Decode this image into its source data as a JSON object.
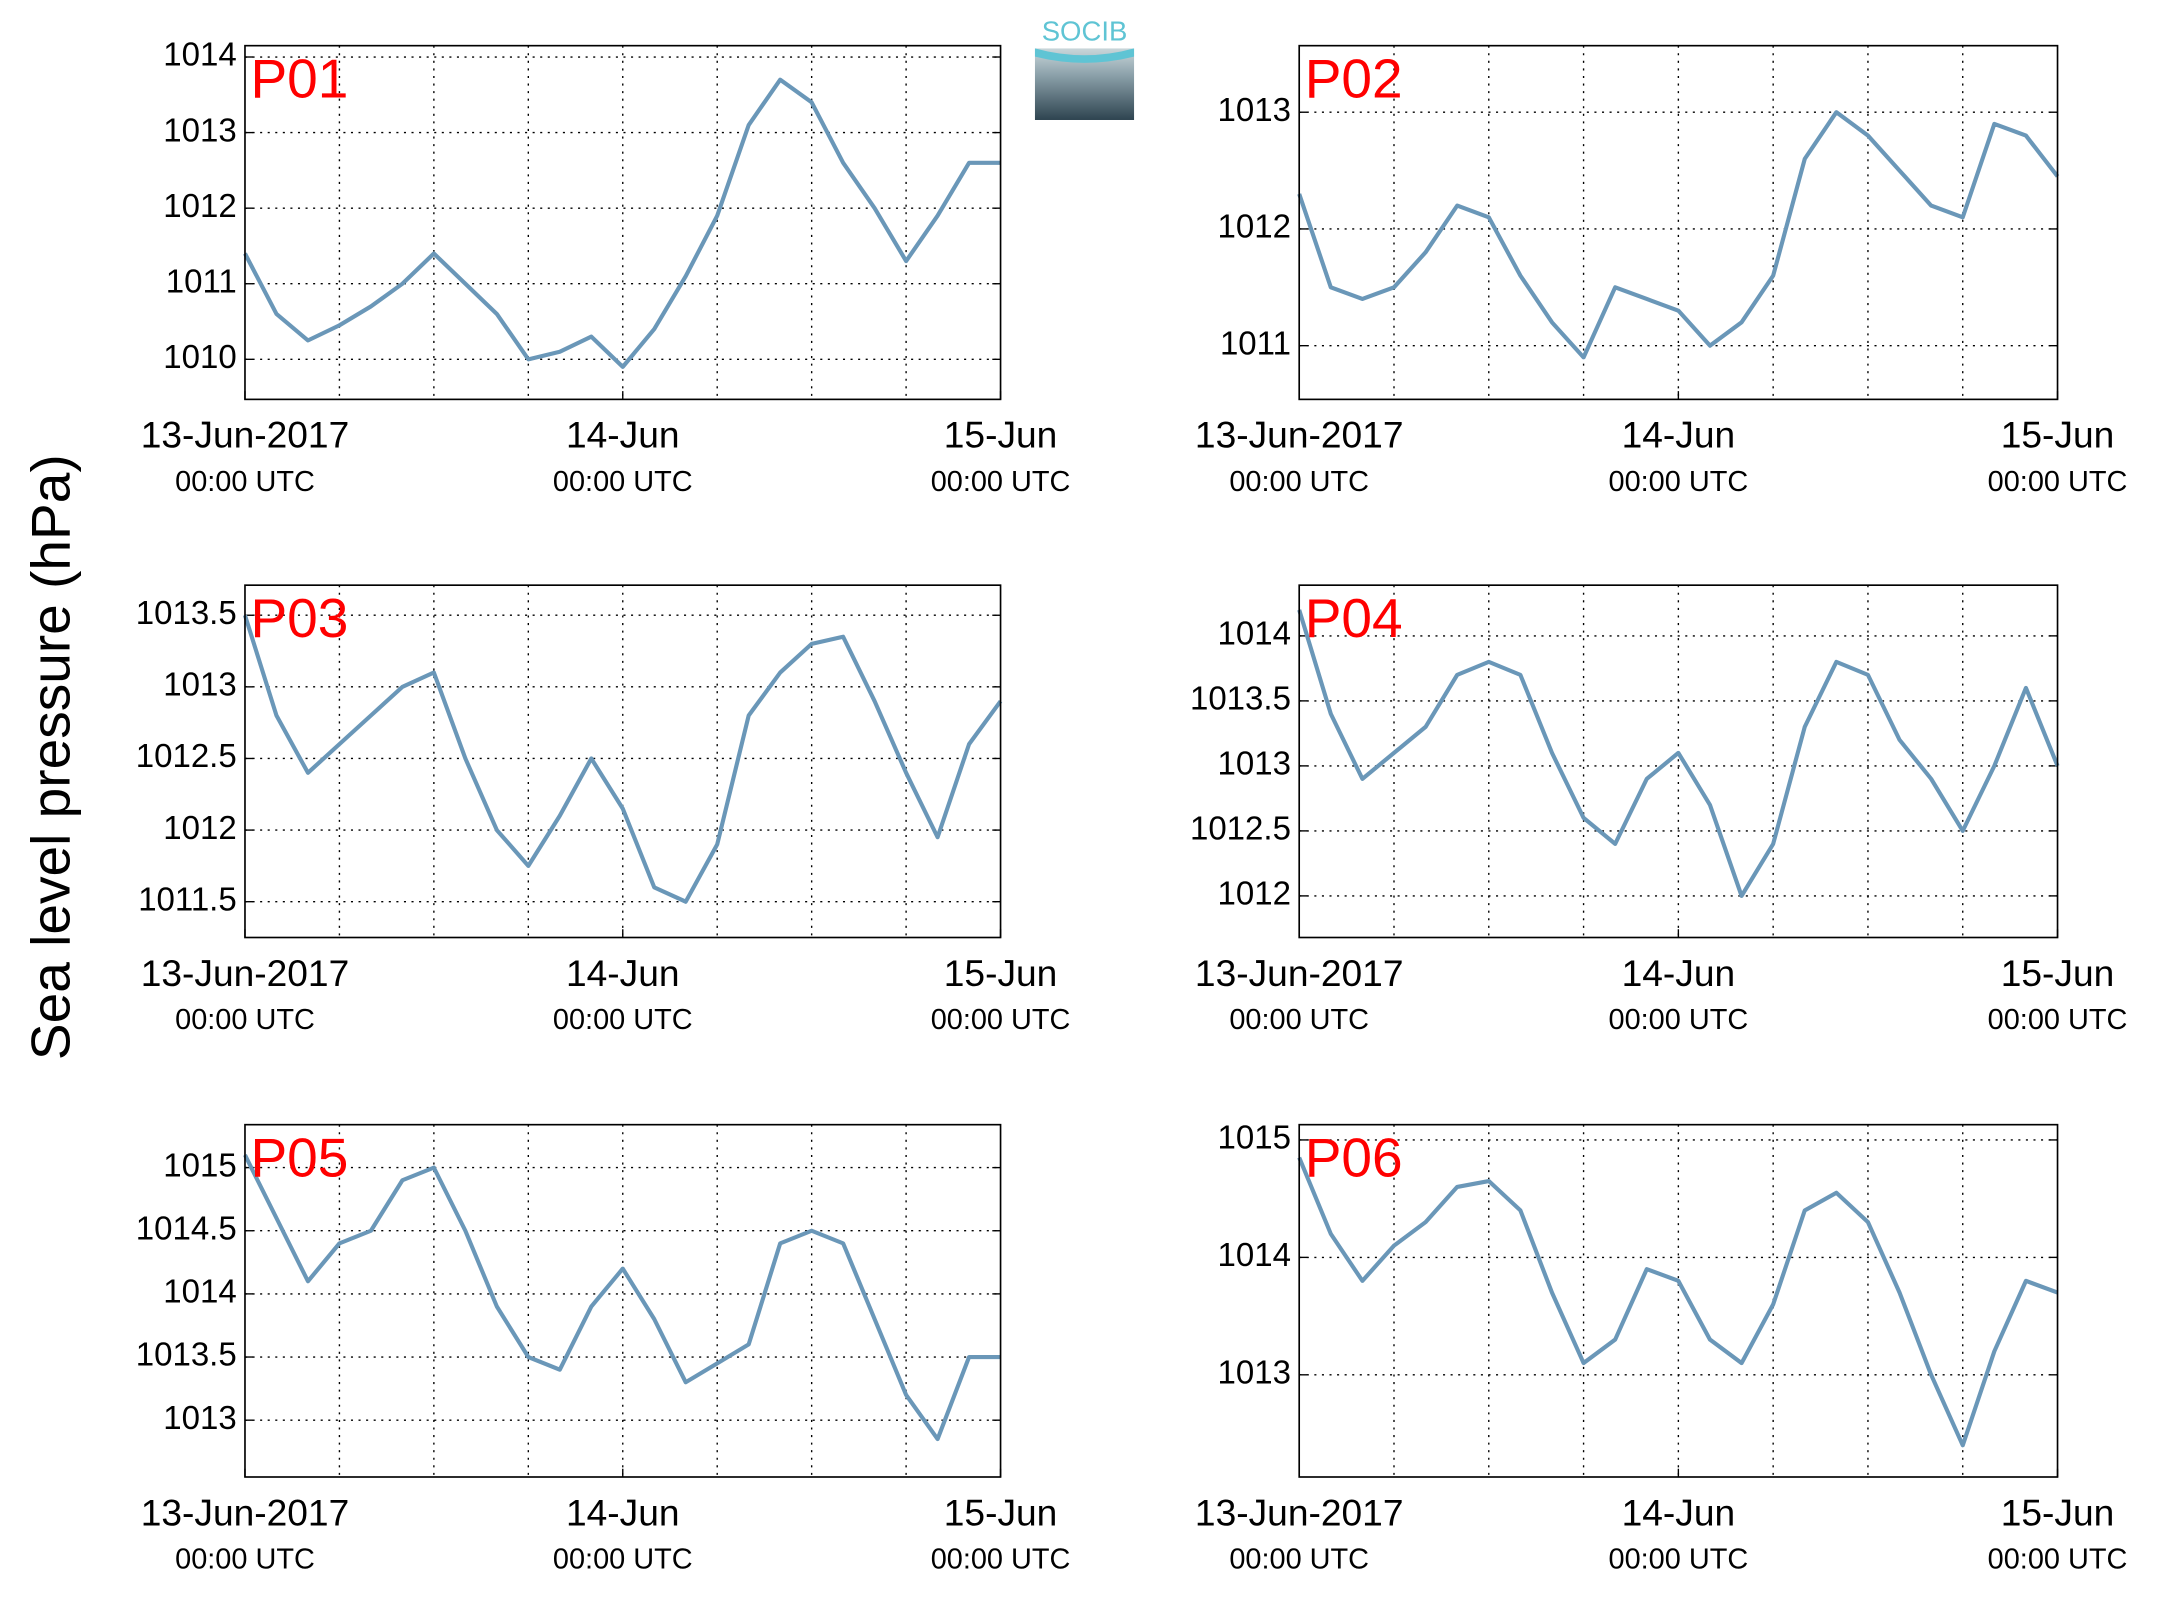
{
  "ylabel": "Sea level pressure (hPa)",
  "logo": "SOCIB",
  "chart_data": [
    {
      "type": "line",
      "title": "P01",
      "x": [
        "2017-06-13T00:00",
        "2017-06-13T02:00",
        "2017-06-13T04:00",
        "2017-06-13T06:00",
        "2017-06-13T08:00",
        "2017-06-13T10:00",
        "2017-06-13T12:00",
        "2017-06-13T14:00",
        "2017-06-13T16:00",
        "2017-06-13T18:00",
        "2017-06-13T20:00",
        "2017-06-13T22:00",
        "2017-06-14T00:00",
        "2017-06-14T02:00",
        "2017-06-14T04:00",
        "2017-06-14T06:00",
        "2017-06-14T08:00",
        "2017-06-14T10:00",
        "2017-06-14T12:00",
        "2017-06-14T14:00",
        "2017-06-14T16:00",
        "2017-06-14T18:00",
        "2017-06-14T20:00",
        "2017-06-14T22:00",
        "2017-06-15T00:00"
      ],
      "series": [
        {
          "color": "#6a97b8",
          "values": [
            1011.4,
            1010.6,
            1010.25,
            1010.45,
            1010.7,
            1011.0,
            1011.4,
            1011.0,
            1010.6,
            1010.0,
            1010.1,
            1010.3,
            1009.9,
            1010.4,
            1011.1,
            1011.9,
            1013.1,
            1013.7,
            1013.4,
            1012.6,
            1012.0,
            1011.3,
            1011.9,
            1012.6,
            1012.6
          ]
        }
      ],
      "xlim": [
        "2017-06-13T00:00",
        "2017-06-15T00:00"
      ],
      "xticks": [
        {
          "value": "2017-06-13T00:00",
          "label": "13-Jun-2017",
          "sublabel": "00:00 UTC"
        },
        {
          "value": "2017-06-14T00:00",
          "label": "14-Jun",
          "sublabel": "00:00 UTC"
        },
        {
          "value": "2017-06-15T00:00",
          "label": "15-Jun",
          "sublabel": "00:00 UTC"
        }
      ],
      "xgrid": [
        "2017-06-13T06:00",
        "2017-06-13T12:00",
        "2017-06-13T18:00",
        "2017-06-14T00:00",
        "2017-06-14T06:00",
        "2017-06-14T12:00",
        "2017-06-14T18:00"
      ],
      "ylim": [
        1009.47,
        1014.15
      ],
      "yticks": [
        1010,
        1011,
        1012,
        1013,
        1014
      ],
      "grid": true
    },
    {
      "type": "line",
      "title": "P02",
      "x": [
        "2017-06-13T00:00",
        "2017-06-13T02:00",
        "2017-06-13T04:00",
        "2017-06-13T06:00",
        "2017-06-13T08:00",
        "2017-06-13T10:00",
        "2017-06-13T12:00",
        "2017-06-13T14:00",
        "2017-06-13T16:00",
        "2017-06-13T18:00",
        "2017-06-13T20:00",
        "2017-06-13T22:00",
        "2017-06-14T00:00",
        "2017-06-14T02:00",
        "2017-06-14T04:00",
        "2017-06-14T06:00",
        "2017-06-14T08:00",
        "2017-06-14T10:00",
        "2017-06-14T12:00",
        "2017-06-14T14:00",
        "2017-06-14T16:00",
        "2017-06-14T18:00",
        "2017-06-14T20:00",
        "2017-06-14T22:00",
        "2017-06-15T00:00"
      ],
      "series": [
        {
          "color": "#6a97b8",
          "values": [
            1012.3,
            1011.5,
            1011.4,
            1011.5,
            1011.8,
            1012.2,
            1012.1,
            1011.6,
            1011.2,
            1010.9,
            1011.5,
            1011.4,
            1011.3,
            1011.0,
            1011.2,
            1011.6,
            1012.6,
            1013.0,
            1012.8,
            1012.5,
            1012.2,
            1012.1,
            1012.9,
            1012.8,
            1012.45
          ]
        }
      ],
      "xlim": [
        "2017-06-13T00:00",
        "2017-06-15T00:00"
      ],
      "xticks": [
        {
          "value": "2017-06-13T00:00",
          "label": "13-Jun-2017",
          "sublabel": "00:00 UTC"
        },
        {
          "value": "2017-06-14T00:00",
          "label": "14-Jun",
          "sublabel": "00:00 UTC"
        },
        {
          "value": "2017-06-15T00:00",
          "label": "15-Jun",
          "sublabel": "00:00 UTC"
        }
      ],
      "xgrid": [
        "2017-06-13T06:00",
        "2017-06-13T12:00",
        "2017-06-13T18:00",
        "2017-06-14T00:00",
        "2017-06-14T06:00",
        "2017-06-14T12:00",
        "2017-06-14T18:00"
      ],
      "ylim": [
        1010.54,
        1013.57
      ],
      "yticks": [
        1011,
        1012,
        1013
      ],
      "grid": true
    },
    {
      "type": "line",
      "title": "P03",
      "x": [
        "2017-06-13T00:00",
        "2017-06-13T02:00",
        "2017-06-13T04:00",
        "2017-06-13T06:00",
        "2017-06-13T08:00",
        "2017-06-13T10:00",
        "2017-06-13T12:00",
        "2017-06-13T14:00",
        "2017-06-13T16:00",
        "2017-06-13T18:00",
        "2017-06-13T20:00",
        "2017-06-13T22:00",
        "2017-06-14T00:00",
        "2017-06-14T02:00",
        "2017-06-14T04:00",
        "2017-06-14T06:00",
        "2017-06-14T08:00",
        "2017-06-14T10:00",
        "2017-06-14T12:00",
        "2017-06-14T14:00",
        "2017-06-14T16:00",
        "2017-06-14T18:00",
        "2017-06-14T20:00",
        "2017-06-14T22:00",
        "2017-06-15T00:00"
      ],
      "series": [
        {
          "color": "#6a97b8",
          "values": [
            1013.5,
            1012.8,
            1012.4,
            1012.6,
            1012.8,
            1013.0,
            1013.1,
            1012.5,
            1012.0,
            1011.75,
            1012.1,
            1012.5,
            1012.15,
            1011.6,
            1011.5,
            1011.9,
            1012.8,
            1013.1,
            1013.3,
            1013.35,
            1012.9,
            1012.4,
            1011.95,
            1012.6,
            1012.9
          ]
        }
      ],
      "xlim": [
        "2017-06-13T00:00",
        "2017-06-15T00:00"
      ],
      "xticks": [
        {
          "value": "2017-06-13T00:00",
          "label": "13-Jun-2017",
          "sublabel": "00:00 UTC"
        },
        {
          "value": "2017-06-14T00:00",
          "label": "14-Jun",
          "sublabel": "00:00 UTC"
        },
        {
          "value": "2017-06-15T00:00",
          "label": "15-Jun",
          "sublabel": "00:00 UTC"
        }
      ],
      "xgrid": [
        "2017-06-13T06:00",
        "2017-06-13T12:00",
        "2017-06-13T18:00",
        "2017-06-14T00:00",
        "2017-06-14T06:00",
        "2017-06-14T12:00",
        "2017-06-14T18:00"
      ],
      "ylim": [
        1011.25,
        1013.71
      ],
      "yticks": [
        1011.5,
        1012,
        1012.5,
        1013,
        1013.5
      ],
      "grid": true
    },
    {
      "type": "line",
      "title": "P04",
      "x": [
        "2017-06-13T00:00",
        "2017-06-13T02:00",
        "2017-06-13T04:00",
        "2017-06-13T06:00",
        "2017-06-13T08:00",
        "2017-06-13T10:00",
        "2017-06-13T12:00",
        "2017-06-13T14:00",
        "2017-06-13T16:00",
        "2017-06-13T18:00",
        "2017-06-13T20:00",
        "2017-06-13T22:00",
        "2017-06-14T00:00",
        "2017-06-14T02:00",
        "2017-06-14T04:00",
        "2017-06-14T06:00",
        "2017-06-14T08:00",
        "2017-06-14T10:00",
        "2017-06-14T12:00",
        "2017-06-14T14:00",
        "2017-06-14T16:00",
        "2017-06-14T18:00",
        "2017-06-14T20:00",
        "2017-06-14T22:00",
        "2017-06-15T00:00"
      ],
      "series": [
        {
          "color": "#6a97b8",
          "values": [
            1014.2,
            1013.4,
            1012.9,
            1013.1,
            1013.3,
            1013.7,
            1013.8,
            1013.7,
            1013.1,
            1012.6,
            1012.4,
            1012.9,
            1013.1,
            1012.7,
            1012.0,
            1012.4,
            1013.3,
            1013.8,
            1013.7,
            1013.2,
            1012.9,
            1012.5,
            1013.0,
            1013.6,
            1013.0
          ]
        }
      ],
      "xlim": [
        "2017-06-13T00:00",
        "2017-06-15T00:00"
      ],
      "xticks": [
        {
          "value": "2017-06-13T00:00",
          "label": "13-Jun-2017",
          "sublabel": "00:00 UTC"
        },
        {
          "value": "2017-06-14T00:00",
          "label": "14-Jun",
          "sublabel": "00:00 UTC"
        },
        {
          "value": "2017-06-15T00:00",
          "label": "15-Jun",
          "sublabel": "00:00 UTC"
        }
      ],
      "xgrid": [
        "2017-06-13T06:00",
        "2017-06-13T12:00",
        "2017-06-13T18:00",
        "2017-06-14T00:00",
        "2017-06-14T06:00",
        "2017-06-14T12:00",
        "2017-06-14T18:00"
      ],
      "ylim": [
        1011.68,
        1014.39
      ],
      "yticks": [
        1012,
        1012.5,
        1013,
        1013.5,
        1014
      ],
      "grid": true
    },
    {
      "type": "line",
      "title": "P05",
      "x": [
        "2017-06-13T00:00",
        "2017-06-13T02:00",
        "2017-06-13T04:00",
        "2017-06-13T06:00",
        "2017-06-13T08:00",
        "2017-06-13T10:00",
        "2017-06-13T12:00",
        "2017-06-13T14:00",
        "2017-06-13T16:00",
        "2017-06-13T18:00",
        "2017-06-13T20:00",
        "2017-06-13T22:00",
        "2017-06-14T00:00",
        "2017-06-14T02:00",
        "2017-06-14T04:00",
        "2017-06-14T06:00",
        "2017-06-14T08:00",
        "2017-06-14T10:00",
        "2017-06-14T12:00",
        "2017-06-14T14:00",
        "2017-06-14T16:00",
        "2017-06-14T18:00",
        "2017-06-14T20:00",
        "2017-06-14T22:00",
        "2017-06-15T00:00"
      ],
      "series": [
        {
          "color": "#6a97b8",
          "values": [
            1015.1,
            1014.6,
            1014.1,
            1014.4,
            1014.5,
            1014.9,
            1015.0,
            1014.5,
            1013.9,
            1013.5,
            1013.4,
            1013.9,
            1014.2,
            1013.8,
            1013.3,
            1013.45,
            1013.6,
            1014.4,
            1014.5,
            1014.4,
            1013.8,
            1013.2,
            1012.85,
            1013.5,
            1013.5
          ]
        }
      ],
      "xlim": [
        "2017-06-13T00:00",
        "2017-06-15T00:00"
      ],
      "xticks": [
        {
          "value": "2017-06-13T00:00",
          "label": "13-Jun-2017",
          "sublabel": "00:00 UTC"
        },
        {
          "value": "2017-06-14T00:00",
          "label": "14-Jun",
          "sublabel": "00:00 UTC"
        },
        {
          "value": "2017-06-15T00:00",
          "label": "15-Jun",
          "sublabel": "00:00 UTC"
        }
      ],
      "xgrid": [
        "2017-06-13T06:00",
        "2017-06-13T12:00",
        "2017-06-13T18:00",
        "2017-06-14T00:00",
        "2017-06-14T06:00",
        "2017-06-14T12:00",
        "2017-06-14T18:00"
      ],
      "ylim": [
        1012.55,
        1015.34
      ],
      "yticks": [
        1013,
        1013.5,
        1014,
        1014.5,
        1015
      ],
      "grid": true
    },
    {
      "type": "line",
      "title": "P06",
      "x": [
        "2017-06-13T00:00",
        "2017-06-13T02:00",
        "2017-06-13T04:00",
        "2017-06-13T06:00",
        "2017-06-13T08:00",
        "2017-06-13T10:00",
        "2017-06-13T12:00",
        "2017-06-13T14:00",
        "2017-06-13T16:00",
        "2017-06-13T18:00",
        "2017-06-13T20:00",
        "2017-06-13T22:00",
        "2017-06-14T00:00",
        "2017-06-14T02:00",
        "2017-06-14T04:00",
        "2017-06-14T06:00",
        "2017-06-14T08:00",
        "2017-06-14T10:00",
        "2017-06-14T12:00",
        "2017-06-14T14:00",
        "2017-06-14T16:00",
        "2017-06-14T18:00",
        "2017-06-14T20:00",
        "2017-06-14T22:00",
        "2017-06-15T00:00"
      ],
      "series": [
        {
          "color": "#6a97b8",
          "values": [
            1014.85,
            1014.2,
            1013.8,
            1014.1,
            1014.3,
            1014.6,
            1014.65,
            1014.4,
            1013.7,
            1013.1,
            1013.3,
            1013.9,
            1013.8,
            1013.3,
            1013.1,
            1013.6,
            1014.4,
            1014.55,
            1014.3,
            1013.7,
            1013.0,
            1012.4,
            1013.2,
            1013.8,
            1013.7
          ]
        }
      ],
      "xlim": [
        "2017-06-13T00:00",
        "2017-06-15T00:00"
      ],
      "xticks": [
        {
          "value": "2017-06-13T00:00",
          "label": "13-Jun-2017",
          "sublabel": "00:00 UTC"
        },
        {
          "value": "2017-06-14T00:00",
          "label": "14-Jun",
          "sublabel": "00:00 UTC"
        },
        {
          "value": "2017-06-15T00:00",
          "label": "15-Jun",
          "sublabel": "00:00 UTC"
        }
      ],
      "xgrid": [
        "2017-06-13T06:00",
        "2017-06-13T12:00",
        "2017-06-13T18:00",
        "2017-06-14T00:00",
        "2017-06-14T06:00",
        "2017-06-14T12:00",
        "2017-06-14T18:00"
      ],
      "ylim": [
        1012.13,
        1015.13
      ],
      "yticks": [
        1013,
        1014,
        1015
      ],
      "grid": true
    }
  ]
}
